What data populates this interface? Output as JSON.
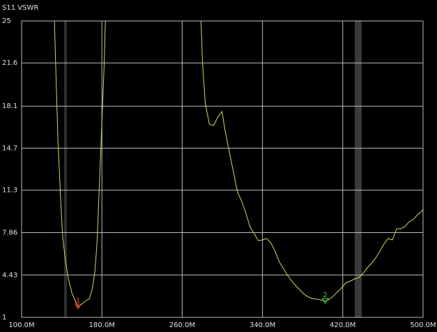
{
  "chart_data": {
    "type": "line",
    "title": "S11 VSWR",
    "x": [
      132.7,
      134.1,
      136.2,
      139.0,
      141.0,
      143.8,
      146.6,
      150.1,
      153.6,
      156.3,
      159.8,
      163.3,
      167.5,
      170.3,
      173.0,
      175.1,
      176.5,
      177.9,
      179.3,
      180.7,
      182.1,
      183.5,
      null,
      278.8,
      280.2,
      283.0,
      287.1,
      291.3,
      295.5,
      299.7,
      302.4,
      306.6,
      310.8,
      315.0,
      319.1,
      323.3,
      327.5,
      331.7,
      335.8,
      340.0,
      344.2,
      348.3,
      352.5,
      356.7,
      360.9,
      365.0,
      369.2,
      373.4,
      377.6,
      381.7,
      385.9,
      390.1,
      394.3,
      398.4,
      402.6,
      406.8,
      411.0,
      415.1,
      419.3,
      423.5,
      427.7,
      431.8,
      436.0,
      440.2,
      444.3,
      448.5,
      452.7,
      456.9,
      461.0,
      465.2,
      469.4,
      473.6,
      477.7,
      481.9,
      486.1,
      490.3,
      494.4,
      498.6,
      500.0
    ],
    "values": [
      25.0,
      21.05,
      15.4,
      10.32,
      7.49,
      5.52,
      4.11,
      2.98,
      2.3,
      1.85,
      2.07,
      2.3,
      2.52,
      3.26,
      4.67,
      6.93,
      9.75,
      12.58,
      15.4,
      18.22,
      21.05,
      25.0,
      null,
      25.0,
      21.61,
      18.34,
      16.64,
      16.53,
      17.21,
      17.66,
      16.25,
      14.55,
      12.86,
      11.16,
      10.43,
      9.47,
      8.34,
      7.78,
      7.21,
      7.27,
      7.38,
      7.04,
      6.36,
      5.52,
      4.95,
      4.39,
      3.94,
      3.54,
      3.2,
      2.86,
      2.64,
      2.52,
      2.47,
      2.41,
      2.3,
      2.47,
      2.75,
      3.09,
      3.43,
      3.82,
      3.94,
      4.11,
      4.22,
      4.56,
      5.01,
      5.35,
      5.8,
      6.36,
      6.93,
      7.38,
      7.27,
      8.17,
      8.17,
      8.34,
      8.74,
      8.91,
      9.3,
      9.58,
      9.75
    ],
    "color": "#d6d65a",
    "xlim": [
      100,
      500
    ],
    "xticks": [
      {
        "value": 100,
        "label": "100.0M"
      },
      {
        "value": 180,
        "label": "180.0M"
      },
      {
        "value": 260,
        "label": "260.0M"
      },
      {
        "value": 340,
        "label": "340.0M"
      },
      {
        "value": 420,
        "label": "420.0M"
      },
      {
        "value": 500,
        "label": "500.0M"
      }
    ],
    "ylim": [
      1,
      25
    ],
    "yticks": [
      1.0,
      4.43,
      7.86,
      11.3,
      14.7,
      18.1,
      21.6,
      25
    ],
    "grid": true,
    "markers": [
      {
        "label": "1",
        "x": 156.3,
        "y": 1.85,
        "color": "#ff3b30"
      },
      {
        "label": "2",
        "x": 402.6,
        "y": 2.3,
        "color": "#3cdc3c"
      }
    ]
  }
}
